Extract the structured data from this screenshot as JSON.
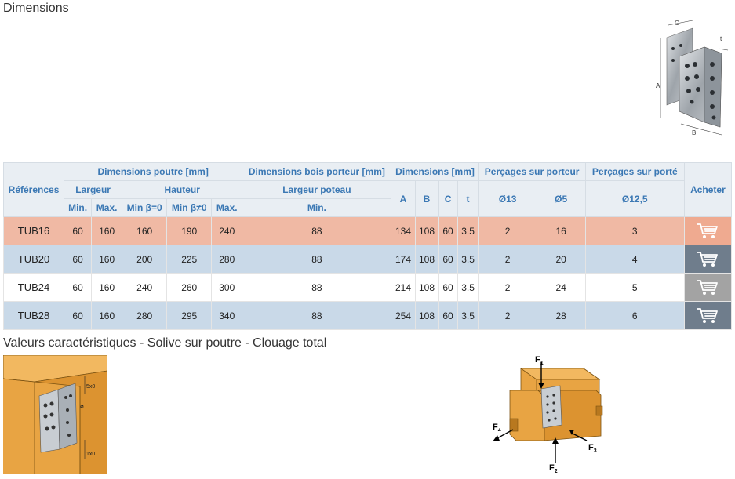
{
  "titles": {
    "dimensions": "Dimensions",
    "values": "Valeurs caractéristiques - Solive sur poutre - Clouage total"
  },
  "product_diagram": {
    "labels": {
      "a": "A",
      "b": "B",
      "c": "C",
      "t": "t"
    }
  },
  "table": {
    "header": {
      "references": "Références",
      "dim_poutre": "Dimensions poutre [mm]",
      "dim_bois": "Dimensions bois porteur [mm]",
      "dimensions": "Dimensions [mm]",
      "percages_porteur": "Perçages sur porteur",
      "percages_porte": "Perçages sur porté",
      "acheter": "Acheter",
      "largeur": "Largeur",
      "hauteur": "Hauteur",
      "largeur_poteau": "Largeur poteau",
      "min": "Min.",
      "max": "Max.",
      "min_b0": "Min β=0",
      "min_bn0": "Min β≠0",
      "max2": "Max.",
      "min_poteau": "Min.",
      "a": "A",
      "b": "B",
      "c": "C",
      "t": "t",
      "d13": "Ø13",
      "d5": "Ø5",
      "d125": "Ø12,5"
    },
    "rows": [
      {
        "ref": "TUB16",
        "lmin": "60",
        "lmax": "160",
        "hmin0": "160",
        "hmin1": "190",
        "hmax": "240",
        "poteau": "88",
        "a": "134",
        "b": "108",
        "c": "60",
        "t": "3.5",
        "d13": "2",
        "d5": "16",
        "d125": "3"
      },
      {
        "ref": "TUB20",
        "lmin": "60",
        "lmax": "160",
        "hmin0": "200",
        "hmin1": "225",
        "hmax": "280",
        "poteau": "88",
        "a": "174",
        "b": "108",
        "c": "60",
        "t": "3.5",
        "d13": "2",
        "d5": "20",
        "d125": "4"
      },
      {
        "ref": "TUB24",
        "lmin": "60",
        "lmax": "160",
        "hmin0": "240",
        "hmin1": "260",
        "hmax": "300",
        "poteau": "88",
        "a": "214",
        "b": "108",
        "c": "60",
        "t": "3.5",
        "d13": "2",
        "d5": "24",
        "d125": "5"
      },
      {
        "ref": "TUB28",
        "lmin": "60",
        "lmax": "160",
        "hmin0": "280",
        "hmin1": "295",
        "hmax": "340",
        "poteau": "88",
        "a": "254",
        "b": "108",
        "c": "60",
        "t": "3.5",
        "d13": "2",
        "d5": "28",
        "d125": "6"
      }
    ],
    "cart_icon": "shopping-cart-icon"
  },
  "solive_photo": {
    "labels": {
      "top": "5x0",
      "middle": "ø",
      "bottom": "1x0"
    }
  },
  "force_diagram": {
    "labels": {
      "f1": "F",
      "f1_sub": "1",
      "f2": "F",
      "f2_sub": "2",
      "f3": "F",
      "f3_sub": "3",
      "f4": "F",
      "f4_sub": "4"
    }
  },
  "colors": {
    "header_text": "#3b78b4",
    "row_highlight": "#f0b9a4",
    "row_blue": "#c9d9e8",
    "wood": "#e8a443"
  }
}
